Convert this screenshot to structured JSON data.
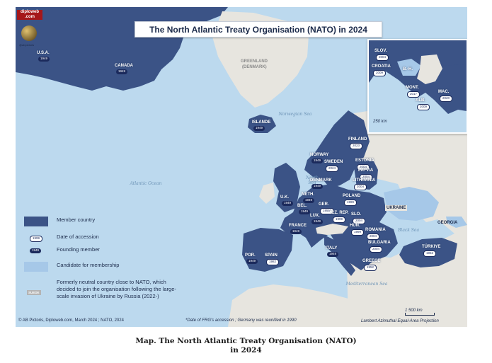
{
  "title": "The North Atlantic Treaty Organisation (NATO) in 2024",
  "logo": {
    "line1": "diploweb",
    "line2": ".com",
    "handle": "@abpictoris"
  },
  "colors": {
    "member": "#3b5386",
    "founding_badge": "#1b2a5c",
    "candidate": "#a6c8e8",
    "sea": "#bcd9ee",
    "non_member_land": "#e7e5df"
  },
  "countries": [
    {
      "name": "U.S.A.",
      "year": "1949",
      "founding": true
    },
    {
      "name": "CANADA",
      "year": "1949",
      "founding": true
    },
    {
      "name": "ISLANDE",
      "year": "1949",
      "founding": true
    },
    {
      "name": "NORWAY",
      "year": "1949",
      "founding": true
    },
    {
      "name": "SWEDEN",
      "year": "2024",
      "founding": false
    },
    {
      "name": "FINLAND",
      "year": "2023",
      "founding": false
    },
    {
      "name": "ESTONIA",
      "year": "2004",
      "founding": false
    },
    {
      "name": "LATVIA",
      "year": "2004",
      "founding": false
    },
    {
      "name": "LITHUANIA",
      "year": "2004",
      "founding": false
    },
    {
      "name": "DENMARK",
      "year": "1949",
      "founding": true
    },
    {
      "name": "U.K.",
      "year": "1949",
      "founding": true
    },
    {
      "name": "NETH.",
      "year": "1949",
      "founding": true
    },
    {
      "name": "BEL.",
      "year": "1949",
      "founding": true
    },
    {
      "name": "LUX.",
      "year": "1949",
      "founding": true
    },
    {
      "name": "GER.",
      "year": "1955*",
      "founding": false
    },
    {
      "name": "POLAND",
      "year": "1999",
      "founding": false
    },
    {
      "name": "CZ. REP.",
      "year": "1999",
      "founding": false
    },
    {
      "name": "SLO.",
      "year": "2004",
      "founding": false
    },
    {
      "name": "HUN.",
      "year": "1999",
      "founding": false
    },
    {
      "name": "FRANCE",
      "year": "1949",
      "founding": true
    },
    {
      "name": "ROMANIA",
      "year": "2004",
      "founding": false
    },
    {
      "name": "BULGARIA",
      "year": "2004",
      "founding": false
    },
    {
      "name": "ITALY",
      "year": "1949",
      "founding": true
    },
    {
      "name": "GREECE",
      "year": "1952",
      "founding": false
    },
    {
      "name": "TÜRKIYE",
      "year": "1952",
      "founding": false
    },
    {
      "name": "POR.",
      "year": "1949",
      "founding": true
    },
    {
      "name": "SPAIN",
      "year": "1982",
      "founding": false
    }
  ],
  "other_labels": {
    "greenland": "GREENLAND",
    "greenland_sub": "(DENMARK)",
    "ukraine": "UKRAINE",
    "georgia": "GEORGIA"
  },
  "seas": {
    "atlantic": "Atlantic Ocean",
    "norwegian": "Norwegian Sea",
    "north": "North Sea",
    "black": "Black Sea",
    "mediterranean": "Mediterranean Sea"
  },
  "inset": {
    "countries": [
      {
        "name": "SLOV.",
        "year": "2004"
      },
      {
        "name": "CROATIA",
        "year": "2009"
      },
      {
        "name": "B.-H.",
        "year": ""
      },
      {
        "name": "MONT.",
        "year": "2017"
      },
      {
        "name": "ALB.",
        "year": "2009"
      },
      {
        "name": "MAC.",
        "year": "2020"
      }
    ],
    "scale": "250 km"
  },
  "legend": {
    "member": "Member country",
    "date_sample": "1999",
    "date": "Date of accession",
    "founding_sample": "1949",
    "founding": "Founding member",
    "candidate": "Candidate for membership",
    "neutral_sample": "SUEDE",
    "neutral": "Formerly neutral country close to NATO, which decided to join the organisation following the large-scale invasion of Ukraine by Russia (2022-)"
  },
  "footer": {
    "credit": "© AB Pictoris, Diploweb.com, March 2024 ; NATO, 2024",
    "note": "*Date of FRG's accession ; Germany was reunified in 1990",
    "scale": "1 500 km",
    "projection": "Lambert Azimuthal Equal-Area Projection"
  },
  "caption": {
    "line1": "Map. The North Atlantic Treaty Organisation (NATO)",
    "line2": "in 2024"
  }
}
